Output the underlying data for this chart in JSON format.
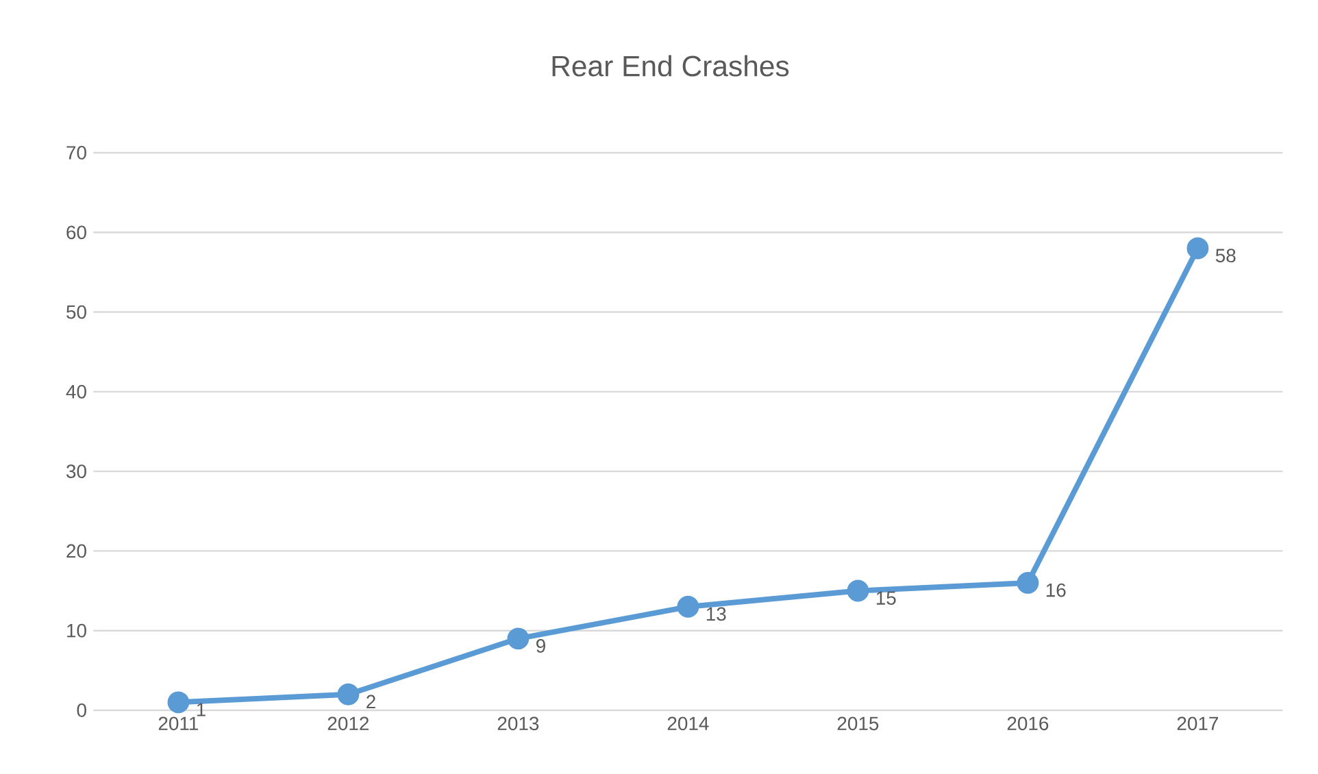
{
  "chart_data": {
    "type": "line",
    "title": "Rear End Crashes",
    "categories": [
      "2011",
      "2012",
      "2013",
      "2014",
      "2015",
      "2016",
      "2017"
    ],
    "series": [
      {
        "color": "#5b9bd5",
        "values": [
          1,
          2,
          9,
          13,
          15,
          16,
          58
        ]
      }
    ],
    "ylim": [
      0,
      70
    ],
    "yticks": [
      0,
      10,
      20,
      30,
      40,
      50,
      60,
      70
    ],
    "grid": "y",
    "marker": "circle",
    "line_style": "solid",
    "data_labels": true
  }
}
